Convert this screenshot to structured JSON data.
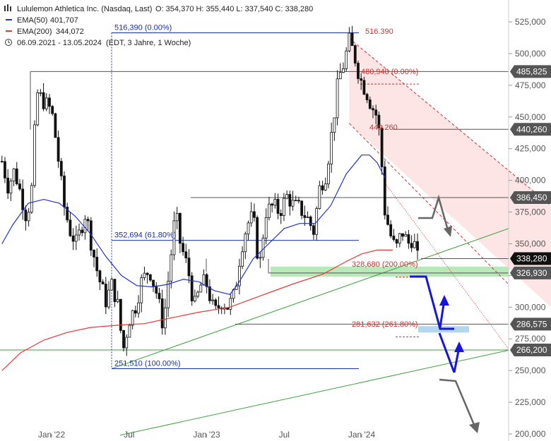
{
  "header": {
    "title": "Lululemon Athletica Inc. (Nasdaq, Last)",
    "ohlc": "O: 354,370  H: 355,440  L: 337,540  C: 338,280",
    "ema50_label": "EMA(50)",
    "ema50_value": "401,707",
    "ema200_label": "EMA(200)",
    "ema200_value": "344,072",
    "range": "06.09.2021 - 13.05.2024",
    "range_note": "(EDT, 3 Jahre, 1 Woche)"
  },
  "colors": {
    "ema50": "#2233cc",
    "ema200": "#e53935",
    "candle": "#111111",
    "level_line": "#555555",
    "fib_blue": "#1a2fa0",
    "fib_red": "#d32f2f",
    "trend_green": "#3fa33f",
    "zone_green": "#b9e8b9",
    "zone_blue": "#b3d6f2",
    "channel_fill": "#fde5e5",
    "arrow_blue": "#1515dd",
    "arrow_grey": "#666666",
    "tag_bg": "#555555"
  },
  "chart_data": {
    "type": "candlestick",
    "title": "Lululemon Athletica Inc. (Nasdaq, Last)",
    "timeframe": "1 Woche",
    "x_ticks": [
      "Jan '22",
      "Jul",
      "Jan '23",
      "Jul",
      "Jan '24"
    ],
    "y_ticks": [
      "525,000",
      "500,000",
      "475,000",
      "450,000",
      "425,000",
      "400,000",
      "375,000",
      "350,000",
      "325,000",
      "300,000",
      "275,000",
      "250,000",
      "225,000",
      "200,000"
    ],
    "y_tick_values": [
      525,
      500,
      475,
      450,
      425,
      400,
      375,
      350,
      325,
      300,
      275,
      250,
      225,
      200
    ],
    "ylim": [
      197,
      534
    ],
    "last_close": 338.28,
    "price_path": [
      [
        2021.68,
        415
      ],
      [
        2021.72,
        395
      ],
      [
        2021.76,
        408
      ],
      [
        2021.8,
        390
      ],
      [
        2021.84,
        370
      ],
      [
        2021.88,
        400
      ],
      [
        2021.9,
        470
      ],
      [
        2021.95,
        462
      ],
      [
        2022.0,
        455
      ],
      [
        2022.03,
        430
      ],
      [
        2022.08,
        380
      ],
      [
        2022.12,
        360
      ],
      [
        2022.16,
        350
      ],
      [
        2022.22,
        375
      ],
      [
        2022.26,
        348
      ],
      [
        2022.3,
        325
      ],
      [
        2022.35,
        305
      ],
      [
        2022.39,
        318
      ],
      [
        2022.43,
        300
      ],
      [
        2022.46,
        265
      ],
      [
        2022.5,
        290
      ],
      [
        2022.54,
        300
      ],
      [
        2022.58,
        320
      ],
      [
        2022.63,
        330
      ],
      [
        2022.68,
        310
      ],
      [
        2022.72,
        285
      ],
      [
        2022.76,
        330
      ],
      [
        2022.8,
        375
      ],
      [
        2022.83,
        350
      ],
      [
        2022.88,
        330
      ],
      [
        2022.92,
        300
      ],
      [
        2022.97,
        320
      ],
      [
        2023.0,
        318
      ],
      [
        2023.05,
        295
      ],
      [
        2023.1,
        305
      ],
      [
        2023.14,
        300
      ],
      [
        2023.18,
        310
      ],
      [
        2023.22,
        345
      ],
      [
        2023.26,
        365
      ],
      [
        2023.3,
        372
      ],
      [
        2023.34,
        330
      ],
      [
        2023.38,
        375
      ],
      [
        2023.43,
        380
      ],
      [
        2023.47,
        375
      ],
      [
        2023.52,
        388
      ],
      [
        2023.56,
        380
      ],
      [
        2023.6,
        378
      ],
      [
        2023.65,
        370
      ],
      [
        2023.69,
        360
      ],
      [
        2023.73,
        395
      ],
      [
        2023.77,
        405
      ],
      [
        2023.81,
        440
      ],
      [
        2023.85,
        480
      ],
      [
        2023.88,
        490
      ],
      [
        2023.92,
        510
      ],
      [
        2023.95,
        500
      ],
      [
        2023.99,
        480
      ],
      [
        2024.03,
        470
      ],
      [
        2024.06,
        460
      ],
      [
        2024.1,
        450
      ],
      [
        2024.12,
        430
      ],
      [
        2024.15,
        375
      ],
      [
        2024.19,
        355
      ],
      [
        2024.22,
        345
      ],
      [
        2024.26,
        360
      ],
      [
        2024.3,
        350
      ],
      [
        2024.33,
        355
      ],
      [
        2024.36,
        338.28
      ]
    ],
    "series": [
      {
        "name": "EMA(50)",
        "points": [
          [
            2021.68,
            350
          ],
          [
            2021.75,
            365
          ],
          [
            2021.85,
            382
          ],
          [
            2021.95,
            385
          ],
          [
            2022.05,
            382
          ],
          [
            2022.15,
            372
          ],
          [
            2022.25,
            358
          ],
          [
            2022.35,
            340
          ],
          [
            2022.45,
            325
          ],
          [
            2022.55,
            317
          ],
          [
            2022.65,
            316
          ],
          [
            2022.75,
            318
          ],
          [
            2022.85,
            322
          ],
          [
            2022.95,
            320
          ],
          [
            2023.05,
            313
          ],
          [
            2023.15,
            310
          ],
          [
            2023.2,
            318
          ],
          [
            2023.3,
            338
          ],
          [
            2023.4,
            350
          ],
          [
            2023.5,
            362
          ],
          [
            2023.6,
            366
          ],
          [
            2023.7,
            366
          ],
          [
            2023.8,
            380
          ],
          [
            2023.9,
            405
          ],
          [
            2024.0,
            420
          ],
          [
            2024.05,
            420
          ],
          [
            2024.1,
            414
          ],
          [
            2024.15,
            402
          ]
        ]
      },
      {
        "name": "EMA(200)",
        "points": [
          [
            2021.68,
            250
          ],
          [
            2021.8,
            264
          ],
          [
            2021.95,
            274
          ],
          [
            2022.1,
            280
          ],
          [
            2022.25,
            284
          ],
          [
            2022.45,
            286
          ],
          [
            2022.6,
            287
          ],
          [
            2022.75,
            291
          ],
          [
            2022.95,
            296
          ],
          [
            2023.15,
            300
          ],
          [
            2023.35,
            309
          ],
          [
            2023.55,
            318
          ],
          [
            2023.75,
            326
          ],
          [
            2023.9,
            336
          ],
          [
            2024.0,
            342
          ],
          [
            2024.1,
            345
          ],
          [
            2024.2,
            345
          ]
        ]
      }
    ],
    "horizontal_levels": [
      {
        "value": 485.825,
        "label": "485,825"
      },
      {
        "value": 440.26,
        "label": "440,260"
      },
      {
        "value": 386.45,
        "label": "386,450"
      },
      {
        "value": 338.28,
        "label": "338,280"
      },
      {
        "value": 326.93,
        "label": "326,930"
      },
      {
        "value": 286.575,
        "label": "286,575"
      },
      {
        "value": 266.2,
        "label": "266,200"
      }
    ],
    "fib_retracement_blue": [
      {
        "value": 516.39,
        "label": "516,390 (0.00%)"
      },
      {
        "value": 352.694,
        "label": "352,694 (61.80%)"
      },
      {
        "value": 251.51,
        "label": "251,510 (100.00%)"
      }
    ],
    "fib_extension_red": [
      {
        "value": 516.39,
        "label": "516.390"
      },
      {
        "value": 480.94,
        "label": "480,940 (0.00%)"
      },
      {
        "value": 440.26,
        "label": "440.260"
      },
      {
        "value": 328.68,
        "label": "328,680 (200.00%)"
      },
      {
        "value": 281.632,
        "label": "281,632 (261.80%)"
      }
    ]
  }
}
